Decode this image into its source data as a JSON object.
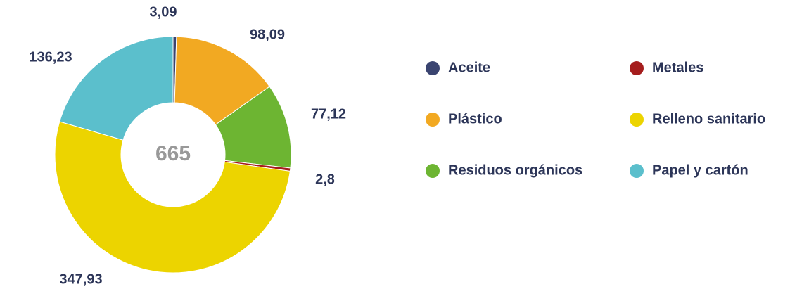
{
  "chart_data": {
    "type": "donut",
    "center_label": "665",
    "series": [
      {
        "name": "Aceite",
        "color": "#3a4470",
        "value": 3.09,
        "value_label": "3,09"
      },
      {
        "name": "Plástico",
        "color": "#f2a922",
        "value": 98.09,
        "value_label": "98,09"
      },
      {
        "name": "Residuos orgánicos",
        "color": "#6db532",
        "value": 77.12,
        "value_label": "77,12"
      },
      {
        "name": "Metales",
        "color": "#a51d1d",
        "value": 2.8,
        "value_label": "2,8"
      },
      {
        "name": "Relleno sanitario",
        "color": "#ecd400",
        "value": 347.93,
        "value_label": "347,93"
      },
      {
        "name": "Papel y cartón",
        "color": "#5bbfcc",
        "value": 136.23,
        "value_label": "136,23"
      }
    ]
  }
}
